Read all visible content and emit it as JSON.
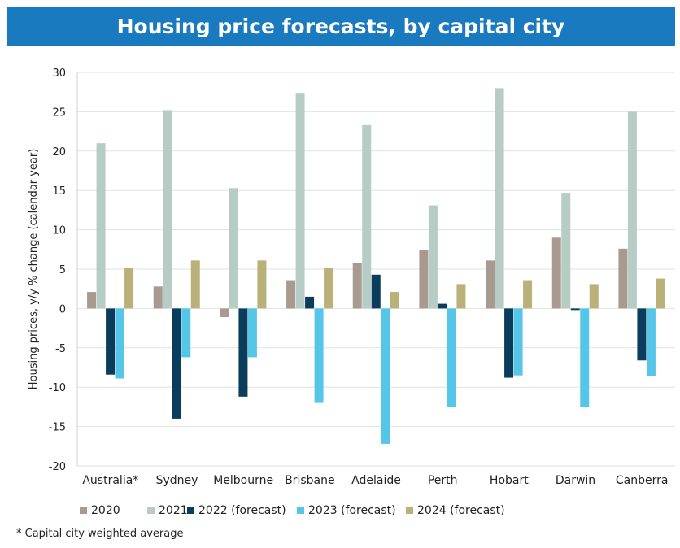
{
  "title": "Housing price forecasts, by capital city",
  "footnote": "* Capital city weighted average",
  "chart_data": {
    "type": "bar",
    "title": "Housing price forecasts, by capital city",
    "xlabel": "",
    "ylabel": "Housing prices, y/y % change (calendar year)",
    "ylim": [
      -20,
      30
    ],
    "yticks": [
      30,
      25,
      20,
      15,
      10,
      5,
      0,
      -5,
      -10,
      -15,
      -20
    ],
    "grid": true,
    "legend_position": "bottom",
    "categories": [
      "Australia*",
      "Sydney",
      "Melbourne",
      "Brisbane",
      "Adelaide",
      "Perth",
      "Hobart",
      "Darwin",
      "Canberra"
    ],
    "series": [
      {
        "name": "2020",
        "color": "#a89a8e",
        "values": [
          2.1,
          2.8,
          -1.1,
          3.6,
          5.8,
          7.4,
          6.1,
          9.0,
          7.6
        ]
      },
      {
        "name": "2021",
        "color": "#b8ccc6",
        "values": [
          21.0,
          25.2,
          15.3,
          27.4,
          23.3,
          13.1,
          28.0,
          14.7,
          25.0
        ]
      },
      {
        "name": "2022 (forecast)",
        "color": "#0a3d5c",
        "values": [
          -8.4,
          -14.0,
          -11.2,
          1.5,
          4.3,
          0.6,
          -8.8,
          -0.2,
          -6.6
        ]
      },
      {
        "name": "2023 (forecast)",
        "color": "#55c6e8",
        "values": [
          -8.9,
          -6.2,
          -6.2,
          -12.0,
          -17.2,
          -12.5,
          -8.5,
          -12.5,
          -8.6
        ]
      },
      {
        "name": "2024 (forecast)",
        "color": "#b9b07a",
        "values": [
          5.1,
          6.1,
          6.1,
          5.1,
          2.1,
          3.1,
          3.6,
          3.1,
          3.8
        ]
      }
    ]
  }
}
